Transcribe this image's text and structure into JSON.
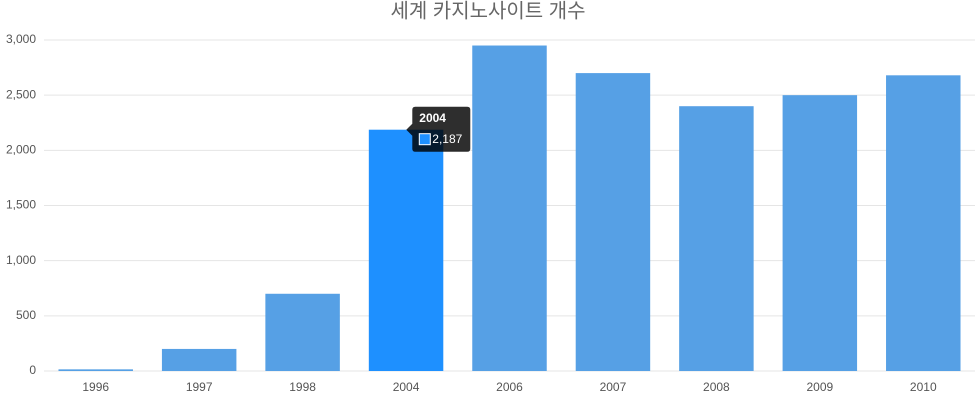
{
  "chart_data": {
    "type": "bar",
    "title": "세계 카지노사이트 개수",
    "categories": [
      "1996",
      "1997",
      "1998",
      "2004",
      "2006",
      "2007",
      "2008",
      "2009",
      "2010"
    ],
    "values": [
      15,
      200,
      700,
      2187,
      2950,
      2700,
      2400,
      2500,
      2680
    ],
    "value_labels": [
      null,
      null,
      null,
      "2,187",
      null,
      null,
      null,
      null,
      null
    ],
    "color": "#56a0e5",
    "highlight_color": "#1e90ff",
    "ylim": [
      0,
      3000
    ],
    "yticks": [
      0,
      500,
      {
        "value": 1000,
        "label": "1,000"
      },
      {
        "value": 1500,
        "label": "1,500"
      },
      {
        "value": 2000,
        "label": "2,000"
      },
      {
        "value": 2500,
        "label": "2,500"
      },
      {
        "value": 3000,
        "label": "3,000"
      }
    ],
    "grid": true
  }
}
